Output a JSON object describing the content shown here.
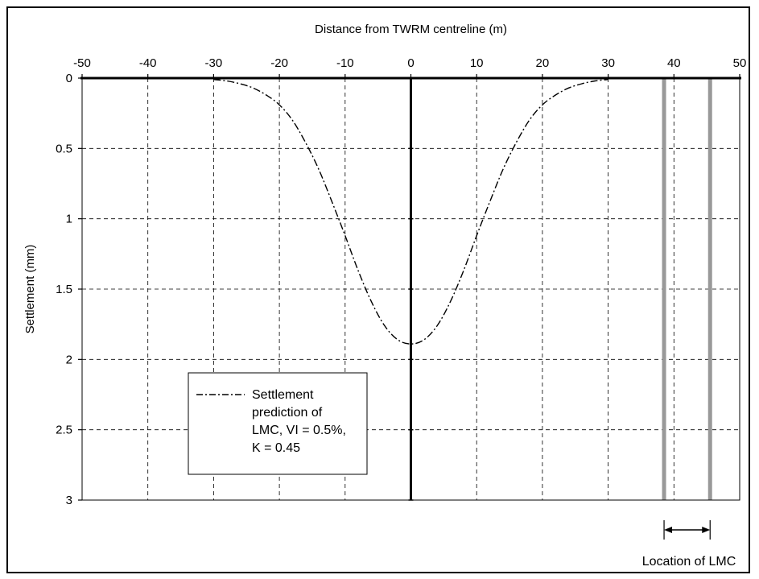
{
  "chart_data": {
    "type": "line",
    "title": "",
    "xlabel": "Distance from TWRM centreline (m)",
    "ylabel": "Settlement (mm)",
    "xlim": [
      -50,
      50
    ],
    "ylim": [
      0,
      3
    ],
    "y_inverted": true,
    "x_axis_position": "top",
    "x_ticks": [
      -50,
      -40,
      -30,
      -20,
      -10,
      0,
      10,
      20,
      30,
      40,
      50
    ],
    "y_ticks": [
      0,
      0.5,
      1,
      1.5,
      2,
      2.5,
      3
    ],
    "x_tick_labels": [
      "-50",
      "-40",
      "-30",
      "-20",
      "-10",
      "0",
      "10",
      "20",
      "30",
      "40",
      "50"
    ],
    "y_tick_labels": [
      "0",
      "0.5",
      "1",
      "1.5",
      "2",
      "2.5",
      "3"
    ],
    "grid": true,
    "series": [
      {
        "name": "Settlement prediction of LMC, VI = 0.5%, K = 0.45",
        "style": "dash-dot",
        "color": "#000000",
        "x": [
          -30,
          -28,
          -26,
          -24,
          -22,
          -20,
          -18,
          -16,
          -14,
          -12,
          -10,
          -8,
          -6,
          -4,
          -2,
          0,
          2,
          4,
          6,
          8,
          10,
          12,
          14,
          16,
          18,
          20,
          22,
          24,
          26,
          28,
          30
        ],
        "y": [
          0.01,
          0.02,
          0.04,
          0.07,
          0.12,
          0.19,
          0.3,
          0.46,
          0.65,
          0.88,
          1.12,
          1.37,
          1.59,
          1.76,
          1.86,
          1.89,
          1.86,
          1.76,
          1.59,
          1.37,
          1.12,
          0.88,
          0.65,
          0.46,
          0.3,
          0.19,
          0.12,
          0.07,
          0.04,
          0.02,
          0.01
        ]
      }
    ],
    "vertical_lines": [
      {
        "x": 0,
        "color": "#000000",
        "style": "solid-thick"
      },
      {
        "x": 38.5,
        "color": "#999999",
        "style": "solid-thick"
      },
      {
        "x": 45.5,
        "color": "#999999",
        "style": "solid-thick"
      }
    ],
    "legend": {
      "placement": "lower-left",
      "lines": [
        "Settlement",
        "prediction of",
        "LMC, VI = 0.5%,",
        "K = 0.45"
      ]
    },
    "annotation": {
      "text": "Location of LMC",
      "x_from": 38.5,
      "x_to": 45.5
    },
    "colors": {
      "axis": "#000000",
      "grid": "#000000",
      "lmc_lines": "#999999",
      "curve": "#000000"
    }
  }
}
